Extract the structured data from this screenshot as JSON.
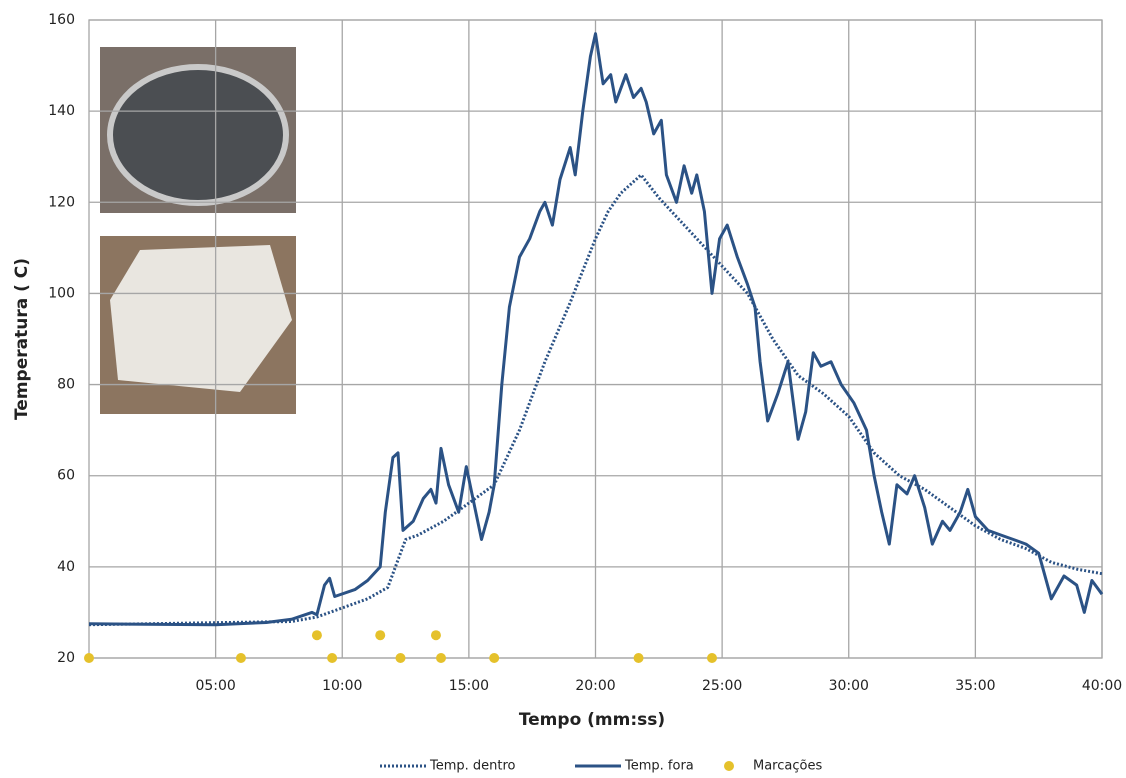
{
  "chart_data": {
    "type": "line",
    "x_label": "Tempo (mm:ss)",
    "y_label": "Temperatura ( C)",
    "xlim": [
      0,
      40
    ],
    "ylim": [
      20,
      160
    ],
    "xticks": [
      {
        "value": 5,
        "label": "05:00"
      },
      {
        "value": 10,
        "label": "10:00"
      },
      {
        "value": 15,
        "label": "15:00"
      },
      {
        "value": 20,
        "label": "20:00"
      },
      {
        "value": 25,
        "label": "25:00"
      },
      {
        "value": 30,
        "label": "30:00"
      },
      {
        "value": 35,
        "label": "35:00"
      },
      {
        "value": 40,
        "label": "40:00"
      }
    ],
    "yticks": [
      20,
      40,
      60,
      80,
      100,
      120,
      140,
      160
    ],
    "grid": true,
    "legend": "bottom",
    "series": [
      {
        "name": "Temp. dentro",
        "color": "#2b5285",
        "style": "dotted",
        "x": [
          0,
          8,
          9,
          10,
          11,
          11.8,
          12.5,
          13,
          14,
          15,
          16,
          17,
          18,
          19,
          19.5,
          20,
          20.5,
          21,
          21.8,
          22.5,
          23,
          24,
          25,
          26,
          27,
          28,
          29,
          30,
          31,
          32,
          33,
          34,
          35,
          36,
          37,
          38,
          39,
          40
        ],
        "values": [
          27.3,
          28,
          29,
          31,
          33,
          35.5,
          46,
          47,
          50,
          54,
          58,
          70,
          85,
          98,
          105,
          112,
          118,
          122,
          126,
          121,
          118,
          112,
          106,
          100,
          90,
          82,
          78,
          73,
          65,
          60,
          57,
          53,
          49,
          46,
          44,
          41,
          39.5,
          38.5
        ]
      },
      {
        "name": "Temp. fora",
        "color": "#2b5285",
        "style": "solid",
        "x": [
          0,
          5,
          7,
          8,
          8.8,
          9.0,
          9.3,
          9.5,
          9.7,
          10.5,
          11,
          11.5,
          11.7,
          12,
          12.2,
          12.4,
          12.8,
          13.2,
          13.5,
          13.7,
          13.9,
          14.2,
          14.6,
          14.9,
          15.2,
          15.5,
          15.8,
          16,
          16.3,
          16.6,
          17,
          17.4,
          17.8,
          18,
          18.3,
          18.6,
          19,
          19.2,
          19.5,
          19.8,
          20,
          20.3,
          20.6,
          20.8,
          21.2,
          21.5,
          21.8,
          22,
          22.3,
          22.6,
          22.8,
          23.2,
          23.5,
          23.8,
          24,
          24.3,
          24.6,
          24.9,
          25.2,
          25.6,
          26,
          26.3,
          26.5,
          26.8,
          27.2,
          27.6,
          28,
          28.3,
          28.6,
          28.9,
          29.3,
          29.7,
          30.2,
          30.7,
          31,
          31.3,
          31.6,
          31.9,
          32.3,
          32.6,
          33,
          33.3,
          33.7,
          34,
          34.4,
          34.7,
          35,
          35.5,
          36,
          36.5,
          37,
          37.5,
          38,
          38.5,
          39,
          39.3,
          39.6,
          40
        ],
        "values": [
          27.5,
          27.3,
          27.8,
          28.5,
          30,
          29.5,
          36,
          37.5,
          33.5,
          35,
          37,
          40,
          52,
          64,
          65,
          48,
          50,
          55,
          57,
          54,
          66,
          58,
          52,
          62,
          54,
          46,
          52,
          58,
          80,
          97,
          108,
          112,
          118,
          120,
          115,
          125,
          132,
          126,
          140,
          152,
          157,
          146,
          148,
          142,
          148,
          143,
          145,
          142,
          135,
          138,
          126,
          120,
          128,
          122,
          126,
          118,
          100,
          112,
          115,
          108,
          102,
          97,
          85,
          72,
          78,
          85,
          68,
          74,
          87,
          84,
          85,
          80,
          76,
          70,
          60,
          52,
          45,
          58,
          56,
          60,
          53,
          45,
          50,
          48,
          52,
          57,
          51,
          48,
          47,
          46,
          45,
          43,
          33,
          38,
          36,
          30,
          37,
          34
        ]
      },
      {
        "name": "Marcações",
        "color": "#e5c12b",
        "style": "markers",
        "x": [
          0,
          6.0,
          9.6,
          12.3,
          13.9,
          16.0,
          21.7,
          24.6,
          9.0,
          11.5,
          13.7
        ],
        "values": [
          20,
          20,
          20,
          20,
          20,
          20,
          20,
          20,
          25,
          25,
          25
        ]
      }
    ]
  }
}
